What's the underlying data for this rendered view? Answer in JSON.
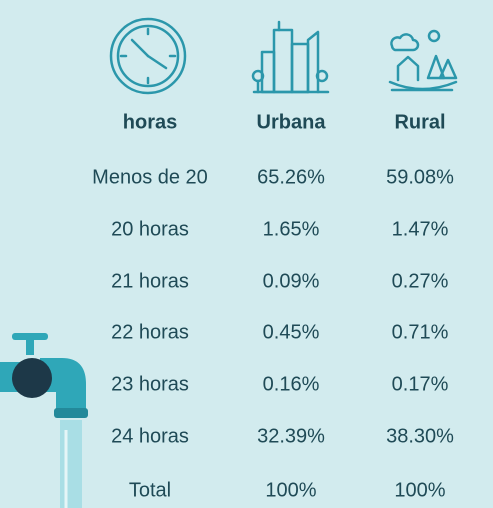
{
  "table": {
    "header": [
      "horas",
      "Urbana",
      "Rural"
    ],
    "rows": [
      [
        "Menos de 20",
        "65.26%",
        "59.08%"
      ],
      [
        "20 horas",
        "1.65%",
        "1.47%"
      ],
      [
        "21 horas",
        "0.09%",
        "0.27%"
      ],
      [
        "22 horas",
        "0.45%",
        "0.71%"
      ],
      [
        "23 horas",
        "0.16%",
        "0.17%"
      ],
      [
        "24 horas",
        "32.39%",
        "38.30%"
      ],
      [
        "Total",
        "100%",
        "100%"
      ]
    ]
  }
}
